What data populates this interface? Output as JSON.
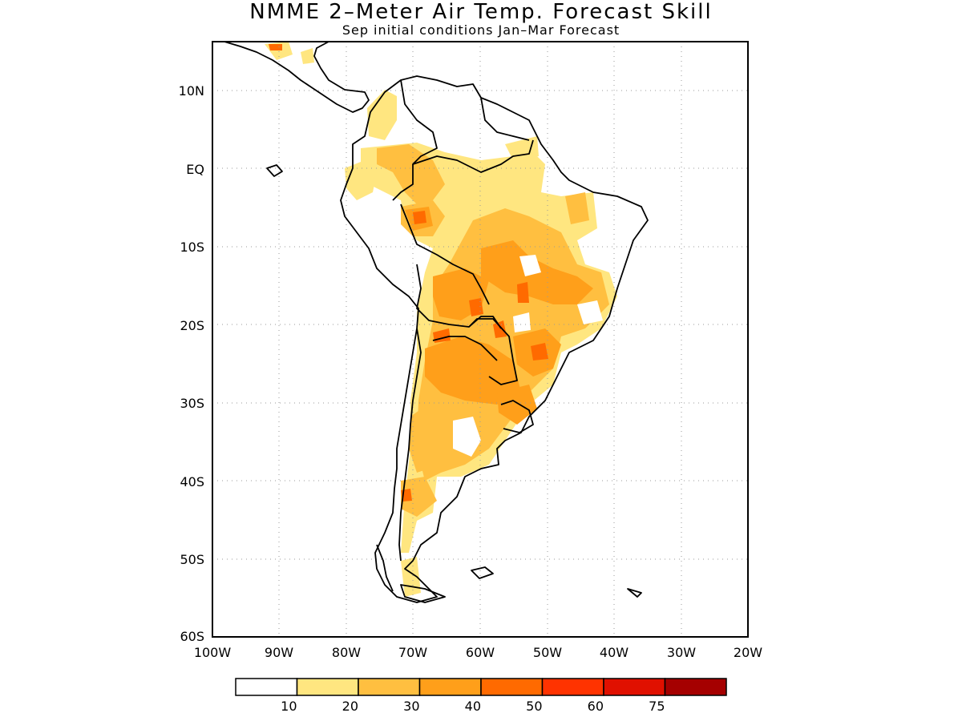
{
  "title": "NMME 2–Meter Air Temp. Forecast Skill",
  "subtitle": "Sep initial conditions  Jan–Mar Forecast",
  "lat_labels": [
    "10N",
    "EQ",
    "10S",
    "20S",
    "30S",
    "40S",
    "50S",
    "60S"
  ],
  "lon_labels": [
    "100W",
    "90W",
    "80W",
    "70W",
    "60W",
    "50W",
    "40W",
    "30W",
    "20W"
  ],
  "legend": {
    "colors": [
      "#ffffff",
      "#ffe680",
      "#ffbf40",
      "#ff9f1a",
      "#ff6a00",
      "#ff3300",
      "#e01000",
      "#a50000"
    ],
    "labels": [
      "10",
      "20",
      "30",
      "40",
      "50",
      "60",
      "75"
    ]
  }
}
